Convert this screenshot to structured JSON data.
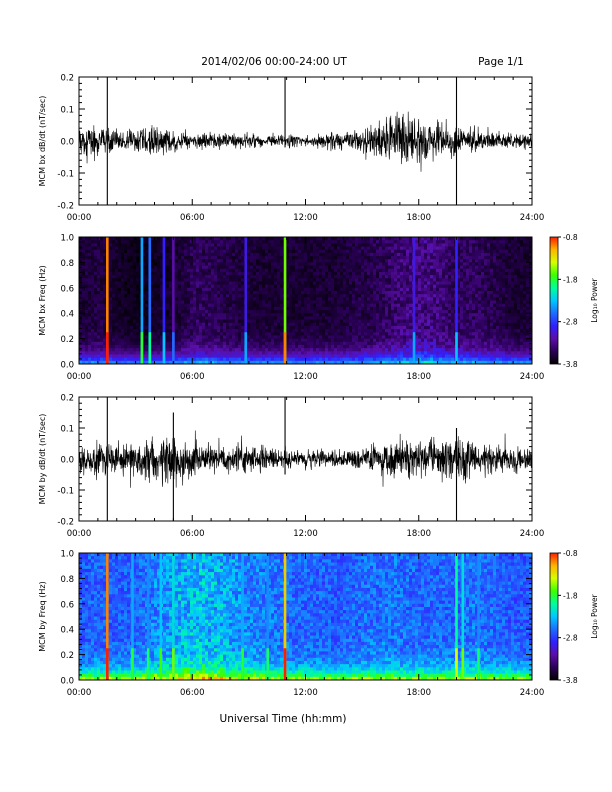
{
  "header": {
    "date_range": "2014/02/06   00:00-24:00 UT",
    "page": "Page 1/1"
  },
  "footer": {
    "xlabel": "Universal Time (hh:mm)"
  },
  "colors": {
    "trace": "#000000",
    "spectrogram_background": "#000000",
    "colormap": [
      "#000000",
      "#2a0057",
      "#5a0fa8",
      "#3020ff",
      "#1f6cff",
      "#00c8ff",
      "#00ff9a",
      "#3cff00",
      "#d6ff00",
      "#ffb400",
      "#ff1e00"
    ]
  },
  "colorbar": {
    "label": "Log₁₀ Power",
    "ticks": [
      "-0.8",
      "-1.8",
      "-2.8",
      "-3.8"
    ]
  },
  "chart_data": [
    {
      "type": "line",
      "ylabel": "MCM bx dB/dt (nT/sec)",
      "x_ticks": [
        "00:00",
        "06:00",
        "12:00",
        "18:00",
        "24:00"
      ],
      "y_ticks": [
        "0.2",
        "0.1",
        "0.0",
        "-0.1",
        "-0.2"
      ],
      "xlim": [
        "00:00",
        "24:00"
      ],
      "ylim": [
        -0.2,
        0.2
      ],
      "series": [
        {
          "x": [
            "00:00",
            "01:00",
            "02:00",
            "03:00",
            "04:00",
            "05:00",
            "06:00",
            "07:00",
            "08:00",
            "09:00",
            "10:00",
            "11:00",
            "12:00",
            "13:00",
            "14:00",
            "15:00",
            "16:00",
            "17:00",
            "18:00",
            "19:00",
            "20:00",
            "21:00",
            "22:00",
            "23:00",
            "24:00"
          ],
          "amplitude": [
            0.05,
            0.05,
            0.04,
            0.05,
            0.06,
            0.04,
            0.03,
            0.03,
            0.03,
            0.025,
            0.025,
            0.025,
            0.02,
            0.025,
            0.03,
            0.04,
            0.08,
            0.12,
            0.09,
            0.06,
            0.05,
            0.04,
            0.035,
            0.03,
            0.025
          ]
        }
      ],
      "spikes": [
        {
          "t": "01:30",
          "min": -0.2,
          "max": 0.2
        },
        {
          "t": "10:55",
          "min": -0.02,
          "max": 0.2
        },
        {
          "t": "20:00",
          "min": -0.2,
          "max": 0.2
        }
      ]
    },
    {
      "type": "heatmap",
      "ylabel": "MCM bx Freq (Hz)",
      "x_ticks": [
        "00:00",
        "06:00",
        "12:00",
        "18:00",
        "24:00"
      ],
      "y_ticks": [
        "1.0",
        "0.8",
        "0.6",
        "0.4",
        "0.2",
        "0.0"
      ],
      "xlim": [
        "00:00",
        "24:00"
      ],
      "ylim": [
        0.0,
        1.0
      ],
      "zlim": [
        -3.8,
        -0.8
      ],
      "background_level": -3.9,
      "activity": [
        0.3,
        0.35,
        0.25,
        0.2,
        0.25,
        0.3,
        0.45,
        0.4,
        0.35,
        0.3,
        0.3,
        0.3,
        0.3,
        0.3,
        0.35,
        0.4,
        0.5,
        0.6,
        0.6,
        0.45,
        0.45,
        0.4,
        0.3,
        0.3
      ],
      "lines": [
        {
          "t": "01:30",
          "level": -1.0
        },
        {
          "t": "03:20",
          "level": -2.4
        },
        {
          "t": "03:45",
          "level": -2.6
        },
        {
          "t": "04:30",
          "level": -2.9
        },
        {
          "t": "05:00",
          "level": -3.2
        },
        {
          "t": "08:50",
          "level": -3.0
        },
        {
          "t": "10:55",
          "level": -1.6
        },
        {
          "t": "17:45",
          "level": -3.0
        },
        {
          "t": "20:00",
          "level": -2.9
        }
      ]
    },
    {
      "type": "line",
      "ylabel": "MCM by dB/dt (nT/sec)",
      "x_ticks": [
        "00:00",
        "06:00",
        "12:00",
        "18:00",
        "24:00"
      ],
      "y_ticks": [
        "0.2",
        "0.1",
        "0.0",
        "-0.1",
        "-0.2"
      ],
      "xlim": [
        "00:00",
        "24:00"
      ],
      "ylim": [
        -0.2,
        0.2
      ],
      "series": [
        {
          "x": [
            "00:00",
            "01:00",
            "02:00",
            "03:00",
            "04:00",
            "05:00",
            "06:00",
            "07:00",
            "08:00",
            "09:00",
            "10:00",
            "11:00",
            "12:00",
            "13:00",
            "14:00",
            "15:00",
            "16:00",
            "17:00",
            "18:00",
            "19:00",
            "20:00",
            "21:00",
            "22:00",
            "23:00",
            "24:00"
          ],
          "amplitude": [
            0.05,
            0.07,
            0.06,
            0.07,
            0.09,
            0.12,
            0.07,
            0.05,
            0.05,
            0.05,
            0.05,
            0.04,
            0.035,
            0.03,
            0.035,
            0.05,
            0.07,
            0.08,
            0.08,
            0.08,
            0.1,
            0.08,
            0.06,
            0.05,
            0.04
          ]
        }
      ],
      "spikes": [
        {
          "t": "01:30",
          "min": -0.2,
          "max": 0.2
        },
        {
          "t": "05:00",
          "min": -0.2,
          "max": 0.15
        },
        {
          "t": "10:55",
          "min": -0.05,
          "max": 0.2
        },
        {
          "t": "20:00",
          "min": -0.2,
          "max": 0.1
        }
      ]
    },
    {
      "type": "heatmap",
      "ylabel": "MCM by Freq (Hz)",
      "x_ticks": [
        "00:00",
        "06:00",
        "12:00",
        "18:00",
        "24:00"
      ],
      "y_ticks": [
        "1.0",
        "0.8",
        "0.6",
        "0.4",
        "0.2",
        "0.0"
      ],
      "xlim": [
        "00:00",
        "24:00"
      ],
      "ylim": [
        0.0,
        1.0
      ],
      "zlim": [
        -3.8,
        -0.8
      ],
      "background_level": -3.2,
      "activity": [
        0.55,
        0.6,
        0.55,
        0.6,
        0.75,
        0.85,
        0.95,
        0.9,
        0.8,
        0.7,
        0.65,
        0.6,
        0.6,
        0.55,
        0.6,
        0.65,
        0.65,
        0.6,
        0.6,
        0.6,
        0.65,
        0.6,
        0.55,
        0.55
      ],
      "lines": [
        {
          "t": "01:30",
          "level": -1.0
        },
        {
          "t": "02:50",
          "level": -2.4
        },
        {
          "t": "03:40",
          "level": -2.5
        },
        {
          "t": "04:20",
          "level": -2.3
        },
        {
          "t": "05:00",
          "level": -2.2
        },
        {
          "t": "08:40",
          "level": -2.4
        },
        {
          "t": "10:00",
          "level": -2.5
        },
        {
          "t": "10:55",
          "level": -1.2
        },
        {
          "t": "20:00",
          "level": -2.0
        },
        {
          "t": "20:20",
          "level": -2.2
        },
        {
          "t": "21:10",
          "level": -2.5
        }
      ]
    }
  ]
}
